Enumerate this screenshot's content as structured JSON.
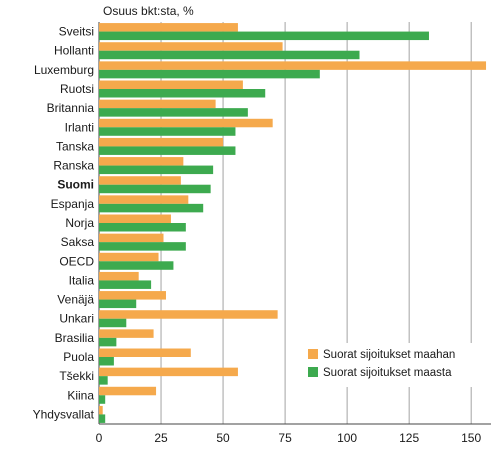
{
  "chart_data": {
    "type": "bar",
    "orientation": "horizontal",
    "ylabel": "Osuus bkt:sta, %",
    "categories": [
      "Sveitsi",
      "Hollanti",
      "Luxemburg",
      "Ruotsi",
      "Britannia",
      "Irlanti",
      "Tanska",
      "Ranska",
      "Suomi",
      "Espanja",
      "Norja",
      "Saksa",
      "OECD",
      "Italia",
      "Venäjä",
      "Unkari",
      "Brasilia",
      "Puola",
      "Tšekki",
      "Kiina",
      "Yhdysvallat"
    ],
    "bold_categories": [
      "Suomi"
    ],
    "series": [
      {
        "name": "Suorat sijoitukset maahan",
        "color": "#f5a94c",
        "values": [
          56,
          74,
          156,
          58,
          47,
          70,
          50,
          34,
          33,
          36,
          29,
          26,
          24,
          16,
          27,
          72,
          22,
          37,
          56,
          23,
          1.5
        ]
      },
      {
        "name": "Suorat sijoitukset maasta",
        "color": "#3daa4f",
        "values": [
          133,
          105,
          89,
          67,
          60,
          55,
          55,
          46,
          45,
          42,
          35,
          35,
          30,
          21,
          15,
          11,
          7,
          6,
          3.5,
          2.5,
          2.5
        ]
      }
    ],
    "xlim": [
      0,
      158
    ],
    "xticks": [
      0,
      25,
      50,
      75,
      100,
      125,
      150
    ],
    "grid": "vertical",
    "legend_position": "bottom-right"
  }
}
